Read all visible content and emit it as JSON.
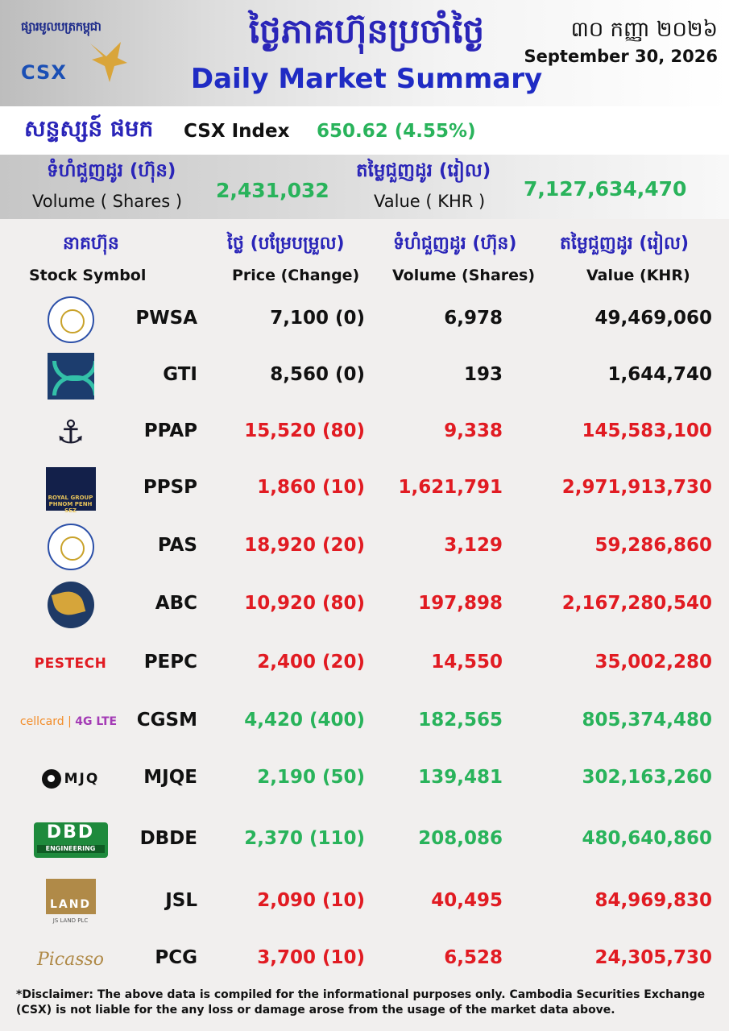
{
  "header": {
    "logo_khmer": "ផ្សារមូលបត្រកម្ពុជា",
    "logo_csx": "CSX",
    "title_khmer": "ថ្ងៃភាគហ៊ុនប្រចាំថ្ងៃ",
    "title_english": "Daily Market Summary",
    "date_khmer": "៣០ កញ្ញា ២០២៦",
    "date_english": "September 30, 2026"
  },
  "index": {
    "label_khmer": "សន្ទស្សន៍ ផមក",
    "label": "CSX Index",
    "value": "650.62 (4.55%)"
  },
  "summary": {
    "volume_label_khmer": "ទំហំជួញដូរ (ហ៊ុន)",
    "volume_label": "Volume ( Shares )",
    "volume_value": "2,431,032",
    "value_label_khmer": "តម្លៃជួញដូរ (រៀល)",
    "value_label": "Value ( KHR )",
    "value_value": "7,127,634,470"
  },
  "columns": {
    "symbol_khmer": "នាគហ៊ុន",
    "symbol": "Stock Symbol",
    "price_khmer": "ថ្លៃ (បម្រែបម្រួល)",
    "price": "Price (Change)",
    "volume_khmer": "ទំហំជួញដូរ (ហ៊ុន)",
    "volume": "Volume (Shares)",
    "value_khmer": "តម្លៃជួញដូរ (រៀល)",
    "value": "Value (KHR)"
  },
  "logos": {
    "royal": "ROYAL GROUP PHNOM PENH SEZ",
    "pestech": "PESTECH",
    "cellcard": "cellcard",
    "cellcard_4g": "4G LTE",
    "mjq": "MJQ",
    "dbd": "DBD",
    "dbd_sub": "ENGINEERING",
    "jsl": "LAND",
    "jsl_sub": "JS LAND PLC",
    "picasso": "Picasso"
  },
  "stocks": [
    {
      "symbol": "PWSA",
      "price": "7,100 (0)",
      "volume": "6,978",
      "value": "49,469,060",
      "trend": "neutral",
      "logo": "pwsa-seal-icon"
    },
    {
      "symbol": "GTI",
      "price": "8,560 (0)",
      "volume": "193",
      "value": "1,644,740",
      "trend": "neutral",
      "logo": "gti-logo-icon"
    },
    {
      "symbol": "PPAP",
      "price": "15,520 (80)",
      "volume": "9,338",
      "value": "145,583,100",
      "trend": "down",
      "logo": "ppap-anchor-icon"
    },
    {
      "symbol": "PPSP",
      "price": "1,860 (10)",
      "volume": "1,621,791",
      "value": "2,971,913,730",
      "trend": "down",
      "logo": "ppsp-royal-group-icon"
    },
    {
      "symbol": "PAS",
      "price": "18,920 (20)",
      "volume": "3,129",
      "value": "59,286,860",
      "trend": "down",
      "logo": "pas-seal-icon"
    },
    {
      "symbol": "ABC",
      "price": "10,920 (80)",
      "volume": "197,898",
      "value": "2,167,280,540",
      "trend": "down",
      "logo": "abc-bird-icon"
    },
    {
      "symbol": "PEPC",
      "price": "2,400 (20)",
      "volume": "14,550",
      "value": "35,002,280",
      "trend": "down",
      "logo": "pestech-logo"
    },
    {
      "symbol": "CGSM",
      "price": "4,420 (400)",
      "volume": "182,565",
      "value": "805,374,480",
      "trend": "up",
      "logo": "cellcard-logo"
    },
    {
      "symbol": "MJQE",
      "price": "2,190 (50)",
      "volume": "139,481",
      "value": "302,163,260",
      "trend": "up",
      "logo": "mjq-logo"
    },
    {
      "symbol": "DBDE",
      "price": "2,370 (110)",
      "volume": "208,086",
      "value": "480,640,860",
      "trend": "up",
      "logo": "dbd-logo"
    },
    {
      "symbol": "JSL",
      "price": "2,090 (10)",
      "volume": "40,495",
      "value": "84,969,830",
      "trend": "down",
      "logo": "js-land-logo"
    },
    {
      "symbol": "PCG",
      "price": "3,700 (10)",
      "volume": "6,528",
      "value": "24,305,730",
      "trend": "down",
      "logo": "picasso-logo"
    }
  ],
  "colors": {
    "up": "#29b35b",
    "down": "#e11b22",
    "neutral": "#111111",
    "title": "#2a25b8"
  },
  "disclaimer": "*Disclaimer: The above data is compiled for the informational purposes only. Cambodia Securities Exchange (CSX) is not liable for the any loss or damage arose from the usage of the market data above."
}
